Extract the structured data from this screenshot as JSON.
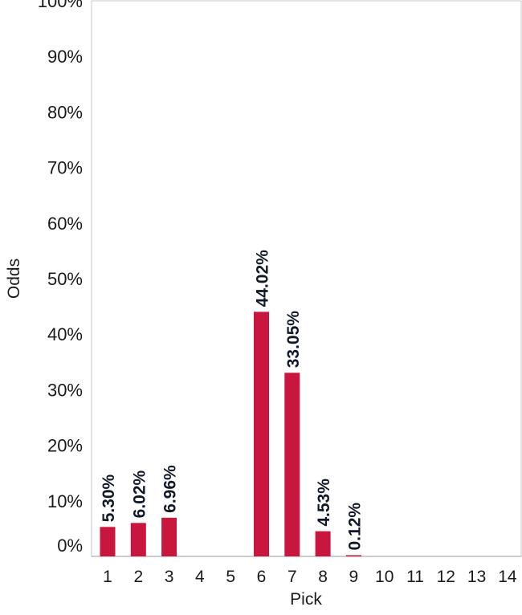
{
  "chart_data": {
    "type": "bar",
    "xlabel": "Pick",
    "ylabel": "Odds",
    "ylim": [
      0,
      100
    ],
    "yticks": [
      "0%",
      "10%",
      "20%",
      "30%",
      "40%",
      "50%",
      "60%",
      "70%",
      "80%",
      "90%",
      "100%"
    ],
    "categories": [
      "1",
      "2",
      "3",
      "4",
      "5",
      "6",
      "7",
      "8",
      "9",
      "10",
      "11",
      "12",
      "13",
      "14"
    ],
    "values": [
      5.3,
      6.02,
      6.96,
      0,
      0,
      44.02,
      33.05,
      4.53,
      0.12,
      0,
      0,
      0,
      0,
      0
    ],
    "data_labels": [
      "5.30%",
      "6.02%",
      "6.96%",
      "",
      "",
      "44.02%",
      "33.05%",
      "4.53%",
      "0.12%",
      "",
      "",
      "",
      "",
      ""
    ],
    "bar_color": "#c8163f",
    "grid": false,
    "legend": "none"
  }
}
